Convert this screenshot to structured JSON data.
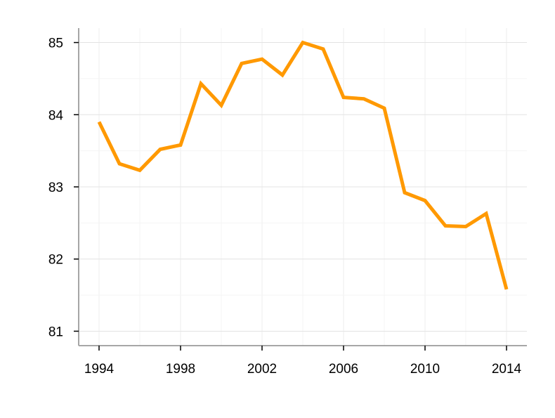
{
  "chart_data": {
    "type": "line",
    "title": "",
    "xlabel": "",
    "ylabel": "",
    "xlim": [
      1993,
      2015
    ],
    "ylim": [
      80.8,
      85.2
    ],
    "x_ticks": [
      1994,
      1998,
      2002,
      2006,
      2010,
      2014
    ],
    "x_tick_labels": [
      "1994",
      "1998",
      "2002",
      "2006",
      "2010",
      "2014"
    ],
    "y_ticks": [
      81,
      82,
      83,
      84,
      85
    ],
    "y_tick_labels": [
      "81",
      "82",
      "83",
      "84",
      "85"
    ],
    "grid": true,
    "series": [
      {
        "color": "#ff9900",
        "x": [
          1994,
          1995,
          1996,
          1997,
          1998,
          1999,
          2000,
          2001,
          2002,
          2003,
          2004,
          2005,
          2006,
          2007,
          2008,
          2009,
          2010,
          2011,
          2012,
          2013,
          2014
        ],
        "y": [
          83.9,
          83.32,
          83.23,
          83.52,
          83.58,
          84.43,
          84.13,
          84.71,
          84.77,
          84.55,
          85.0,
          84.91,
          84.24,
          84.22,
          84.09,
          82.92,
          82.81,
          82.46,
          82.45,
          82.63,
          81.58
        ]
      }
    ]
  }
}
